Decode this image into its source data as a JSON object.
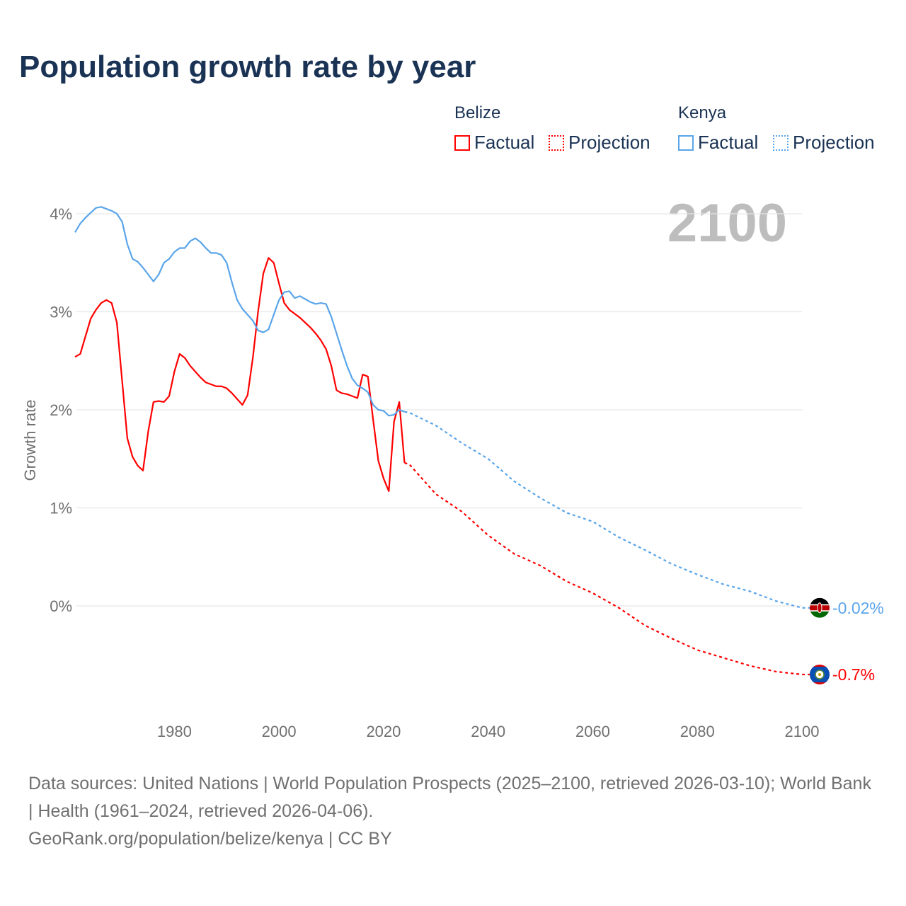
{
  "title": "Population growth rate by year",
  "legend": {
    "belize": "Belize",
    "kenya": "Kenya",
    "factual": "Factual",
    "projection": "Projection"
  },
  "year_label": "2100",
  "footer": {
    "sources": "Data sources: United Nations | World Population Prospects (2025–2100, retrieved 2026-03-10); World Bank | Health (1961–2024, retrieved 2026-04-06).",
    "link": "GeoRank.org/population/belize/kenya | CC BY"
  },
  "colors": {
    "belize": "#ff0000",
    "kenya": "#5aa5ea"
  },
  "chart_data": {
    "type": "line",
    "ylabel": "Growth rate",
    "xlim": [
      1961,
      2100
    ],
    "ylim": [
      -1.05,
      4.25
    ],
    "xticks": [
      1980,
      2000,
      2020,
      2040,
      2060,
      2080,
      2100
    ],
    "xtick_labels": [
      "1980",
      "2000",
      "2020",
      "2040",
      "2060",
      "2080",
      "2100"
    ],
    "yticks": [
      0,
      1,
      2,
      3,
      4
    ],
    "ytick_labels": [
      "0%",
      "1%",
      "2%",
      "3%",
      "4%"
    ],
    "end_labels": {
      "kenya": "-0.02%",
      "belize": "-0.7%"
    },
    "series": [
      {
        "name": "Belize Factual",
        "country": "belize",
        "style": "solid",
        "x_start": 1961,
        "values": [
          2.54,
          2.57,
          2.75,
          2.93,
          3.02,
          3.09,
          3.12,
          3.09,
          2.89,
          2.3,
          1.71,
          1.52,
          1.43,
          1.38,
          1.78,
          2.08,
          2.09,
          2.08,
          2.14,
          2.39,
          2.57,
          2.53,
          2.45,
          2.39,
          2.33,
          2.28,
          2.26,
          2.24,
          2.24,
          2.22,
          2.17,
          2.11,
          2.05,
          2.15,
          2.53,
          3.0,
          3.39,
          3.55,
          3.5,
          3.29,
          3.09,
          3.02,
          2.98,
          2.94,
          2.89,
          2.84,
          2.78,
          2.71,
          2.62,
          2.45,
          2.2,
          2.17,
          2.16,
          2.14,
          2.12,
          2.36,
          2.34,
          1.9,
          1.48,
          1.3,
          1.17,
          1.88,
          2.08,
          1.46
        ]
      },
      {
        "name": "Kenya Factual",
        "country": "kenya",
        "style": "solid",
        "x_start": 1961,
        "values": [
          3.81,
          3.9,
          3.96,
          4.01,
          4.06,
          4.07,
          4.05,
          4.03,
          4.0,
          3.92,
          3.69,
          3.54,
          3.51,
          3.45,
          3.38,
          3.31,
          3.38,
          3.5,
          3.54,
          3.61,
          3.65,
          3.65,
          3.72,
          3.75,
          3.71,
          3.65,
          3.6,
          3.6,
          3.58,
          3.5,
          3.3,
          3.12,
          3.03,
          2.97,
          2.91,
          2.81,
          2.79,
          2.82,
          2.97,
          3.12,
          3.2,
          3.21,
          3.14,
          3.16,
          3.13,
          3.1,
          3.08,
          3.09,
          3.08,
          2.95,
          2.78,
          2.61,
          2.45,
          2.32,
          2.25,
          2.22,
          2.18,
          2.05,
          2.0,
          1.99,
          1.94,
          1.95,
          2.0,
          1.98
        ]
      },
      {
        "name": "Belize Projection",
        "country": "belize",
        "style": "dotted",
        "x": [
          2024,
          2025,
          2030,
          2035,
          2040,
          2045,
          2050,
          2055,
          2060,
          2065,
          2070,
          2075,
          2080,
          2085,
          2090,
          2095,
          2100
        ],
        "values": [
          1.46,
          1.44,
          1.14,
          0.96,
          0.72,
          0.53,
          0.41,
          0.25,
          0.13,
          -0.02,
          -0.2,
          -0.33,
          -0.45,
          -0.53,
          -0.61,
          -0.67,
          -0.7
        ]
      },
      {
        "name": "Kenya Projection",
        "country": "kenya",
        "style": "dotted",
        "x": [
          2024,
          2025,
          2030,
          2035,
          2040,
          2045,
          2050,
          2055,
          2060,
          2065,
          2070,
          2075,
          2080,
          2085,
          2090,
          2095,
          2100
        ],
        "values": [
          1.98,
          1.97,
          1.84,
          1.66,
          1.5,
          1.27,
          1.1,
          0.95,
          0.86,
          0.7,
          0.57,
          0.43,
          0.32,
          0.22,
          0.15,
          0.05,
          -0.02
        ]
      }
    ]
  }
}
